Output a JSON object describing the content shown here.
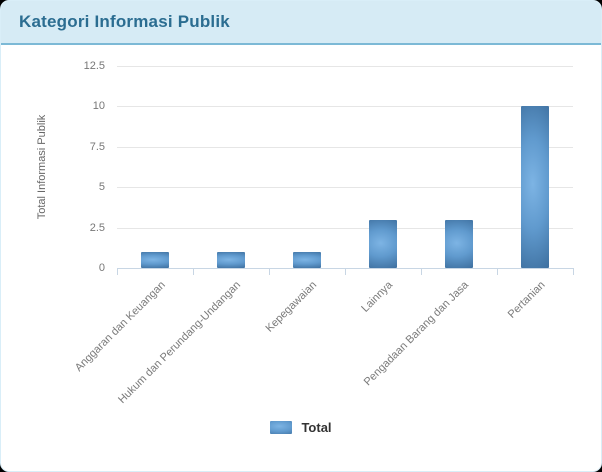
{
  "header": {
    "title": "Kategori Informasi Publik"
  },
  "chart_data": {
    "type": "bar",
    "title": "Kategori Informasi Publik",
    "categories": [
      "Anggaran dan Keuangan",
      "Hukum dan Perundang-Undangan",
      "Kepegawaian",
      "Lainnya",
      "Pengadaan Barang dan Jasa",
      "Pertanian"
    ],
    "series": [
      {
        "name": "Total",
        "values": [
          1,
          1,
          1,
          3,
          3,
          10
        ]
      }
    ],
    "xlabel": "",
    "ylabel": "Total Informasi Publik",
    "ylim": [
      0,
      12.5
    ],
    "yticks": [
      0,
      2.5,
      5,
      7.5,
      10,
      12.5
    ],
    "grid": true,
    "legend_position": "bottom"
  },
  "colors": {
    "header_bg": "#d6ebf5",
    "header_border": "#7cb9d6",
    "header_text": "#2b6d91",
    "bar_light": "#7db4e4",
    "bar_mid": "#609ace",
    "bar_dark": "#3a6b9a",
    "gridline": "#e6e6e6",
    "axis_line": "#c8d6e4",
    "tick_text": "#777777",
    "legend_text": "#333333",
    "card_border": "#d9eef8",
    "page_bg": "#000000"
  }
}
